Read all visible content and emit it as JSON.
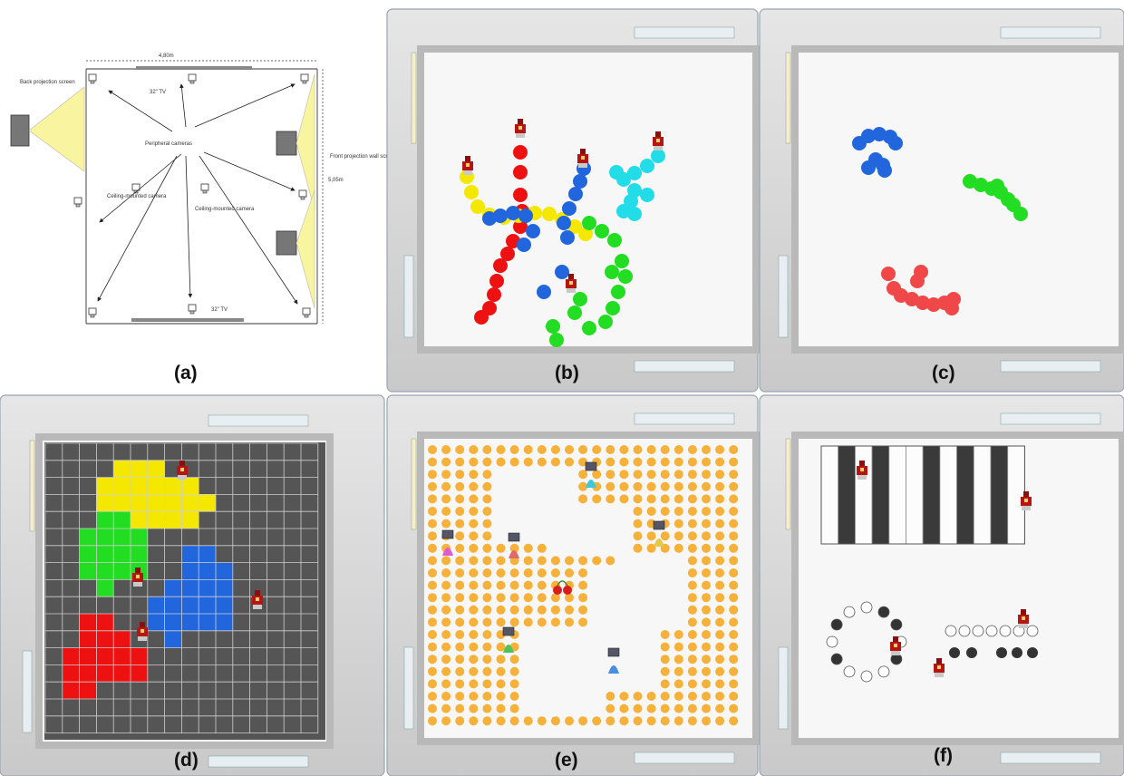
{
  "panels": [
    {
      "id": "a",
      "label": "(a)"
    },
    {
      "id": "b",
      "label": "(b)"
    },
    {
      "id": "c",
      "label": "(c)"
    },
    {
      "id": "d",
      "label": "(d)"
    },
    {
      "id": "e",
      "label": "(e)"
    },
    {
      "id": "f",
      "label": "(f)"
    }
  ],
  "floorplan": {
    "width": "4,80m",
    "height": "5,05m",
    "back_projection": "Back projection screen",
    "tv_top": "32\" TV",
    "tv_bottom": "32\" TV",
    "peripheral": "Peripheral cameras",
    "ceiling_left": "Ceiling-mounted camera",
    "ceiling_right": "Ceiling-mounted camera",
    "front_projection": "Front projection wall screen"
  },
  "colors": {
    "red": "#ee1111",
    "yellow": "#f5e800",
    "blue": "#2266dd",
    "cyan": "#22dde8",
    "green": "#22dd22",
    "grid_bg": "#555555",
    "pellet": "#f5b13a",
    "room_frame": "#d4d4d4",
    "floor": "#f7f7f7",
    "projector_beam": "#f8f4a0"
  },
  "grid_cells": {
    "yellow": [
      "4,1",
      "5,1",
      "6,1",
      "3,2",
      "4,2",
      "5,2",
      "6,2",
      "7,2",
      "8,2",
      "3,3",
      "4,3",
      "5,3",
      "6,3",
      "7,3",
      "8,3",
      "9,3",
      "5,4",
      "6,4",
      "7,4",
      "8,4"
    ],
    "green": [
      "3,4",
      "4,4",
      "2,5",
      "3,5",
      "4,5",
      "5,5",
      "2,6",
      "3,6",
      "4,6",
      "5,6",
      "2,7",
      "3,7",
      "4,7",
      "5,7",
      "3,8"
    ],
    "blue": [
      "8,6",
      "9,6",
      "8,7",
      "9,7",
      "10,7",
      "7,8",
      "8,8",
      "9,8",
      "10,8",
      "6,9",
      "7,9",
      "8,9",
      "9,9",
      "10,9",
      "6,10",
      "7,10",
      "8,10",
      "9,10",
      "10,10",
      "7,11"
    ],
    "red": [
      "2,10",
      "3,10",
      "2,11",
      "3,11",
      "4,11",
      "1,12",
      "2,12",
      "3,12",
      "4,12",
      "5,12",
      "1,13",
      "2,13",
      "3,13",
      "4,13",
      "5,13",
      "1,14",
      "2,14"
    ]
  },
  "piano_keys": [
    "white",
    "black",
    "white",
    "black",
    "white",
    "white",
    "black",
    "white",
    "black",
    "white",
    "black",
    "white"
  ],
  "circle_pattern": [
    "white",
    "black",
    "black",
    "white",
    "black",
    "white",
    "white",
    "white",
    "black",
    "white",
    "black",
    "white"
  ]
}
